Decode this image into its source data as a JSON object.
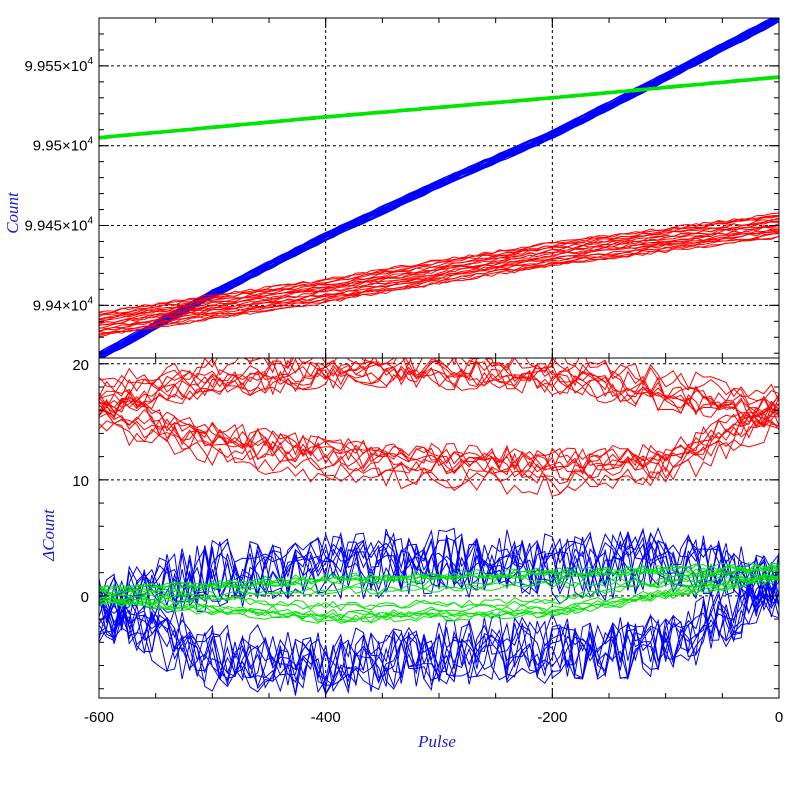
{
  "chart_data": [
    {
      "type": "line",
      "panel": "top",
      "ylabel": "Count",
      "xlim": [
        -600,
        0
      ],
      "ylim": [
        99367,
        99580
      ],
      "ytick_values": [
        99400,
        99450,
        99500,
        99550
      ],
      "ytick_labels": [
        "9.94×10",
        "9.945×10",
        "9.95×10",
        "9.955×10"
      ],
      "ytick_exponent": "4",
      "xticks": [
        -600,
        -400,
        -200,
        0
      ],
      "grid": true,
      "series": [
        {
          "color": "#0000ff",
          "loops": 10,
          "spread": 2.5,
          "x": [
            -600,
            -500,
            -400,
            -300,
            -200,
            -100,
            0
          ],
          "y": [
            99368,
            99407,
            99443,
            99476,
            99507,
            99543,
            99580
          ]
        },
        {
          "color": "#00e600",
          "loops": 8,
          "spread": 0.8,
          "x": [
            -600,
            -400,
            -200,
            0
          ],
          "y": [
            99505,
            99518,
            99530,
            99543
          ]
        },
        {
          "color": "#ff0000",
          "loops": 10,
          "spread": 7,
          "x": [
            -600,
            -500,
            -400,
            -300,
            -200,
            -100,
            0
          ],
          "y": [
            99388,
            99399,
            99409,
            99421,
            99432,
            99441,
            99450
          ]
        }
      ]
    },
    {
      "type": "line",
      "panel": "bottom",
      "xlabel": "Pulse",
      "ylabel": "ΔCount",
      "xlim": [
        -600,
        0
      ],
      "ylim": [
        -8.8,
        20.5
      ],
      "yticks": [
        0,
        10,
        20
      ],
      "xticks": [
        -600,
        -400,
        -200,
        0
      ],
      "grid": true,
      "series": [
        {
          "color": "#ff0000",
          "loops": 10,
          "x": [
            -600,
            -500,
            -400,
            -300,
            -200,
            -100,
            0
          ],
          "y_upper": [
            17,
            18.5,
            19.5,
            19.5,
            19,
            17.5,
            16
          ],
          "y_lower": [
            16,
            13.5,
            12,
            11.5,
            11,
            11.5,
            16
          ]
        },
        {
          "color": "#0000ff",
          "loops": 10,
          "x": [
            -600,
            -500,
            -400,
            -300,
            -200,
            -100,
            0
          ],
          "y_upper": [
            -1,
            2,
            2.5,
            3,
            2.5,
            3,
            1
          ],
          "y_lower": [
            -1,
            -5.5,
            -6,
            -5,
            -4.5,
            -4.5,
            1
          ]
        },
        {
          "color": "#00e600",
          "loops": 8,
          "x": [
            -600,
            -400,
            -200,
            0
          ],
          "y_upper": [
            0,
            1,
            1.5,
            2
          ],
          "y_lower": [
            0,
            -1.5,
            -1,
            2
          ]
        }
      ]
    }
  ]
}
